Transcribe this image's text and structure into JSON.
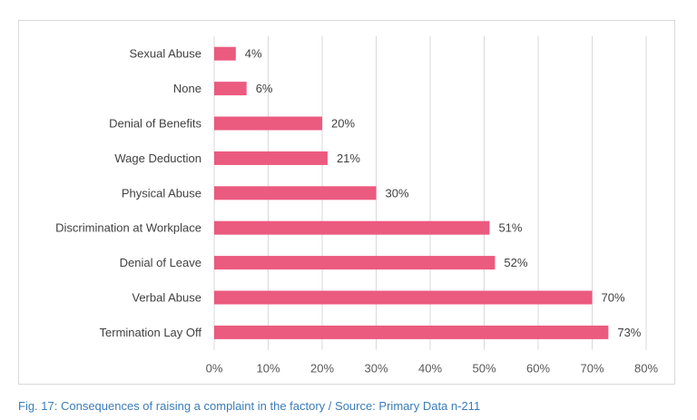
{
  "chart_data": {
    "type": "bar",
    "orientation": "horizontal",
    "categories": [
      "Sexual Abuse",
      "None",
      "Denial of Benefits",
      "Wage Deduction",
      "Physical Abuse",
      "Discrimination at Workplace",
      "Denial of Leave",
      "Verbal Abuse",
      "Termination Lay Off"
    ],
    "values": [
      4,
      6,
      20,
      21,
      30,
      51,
      52,
      70,
      73
    ],
    "data_labels": [
      "4%",
      "6%",
      "20%",
      "21%",
      "30%",
      "51%",
      "52%",
      "70%",
      "73%"
    ],
    "x_ticks": [
      "0%",
      "10%",
      "20%",
      "30%",
      "40%",
      "50%",
      "60%",
      "70%",
      "80%"
    ],
    "xlim": [
      0,
      80
    ],
    "grid": "vertical",
    "legend": "none",
    "bar_color": "#eb5a7f",
    "title": "",
    "xlabel": "",
    "ylabel": ""
  },
  "caption": "Fig. 17: Consequences of raising a complaint in the factory / Source: Primary Data n-211"
}
